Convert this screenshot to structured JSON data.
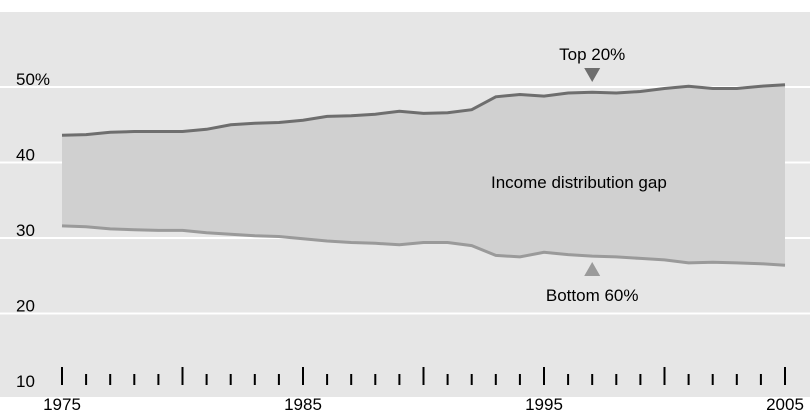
{
  "chart_data": {
    "type": "area",
    "title": "",
    "xlabel": "",
    "ylabel": "",
    "xlim": [
      1975,
      2005
    ],
    "ylim": [
      10,
      50
    ],
    "x_ticks": [
      "1975",
      "1985",
      "1995",
      "2005"
    ],
    "y_ticks": [
      "50%",
      "40",
      "30",
      "20",
      "10"
    ],
    "y_tick_values": [
      50,
      40,
      30,
      20,
      10
    ],
    "grid": true,
    "series": [
      {
        "name": "Top 20%",
        "x": [
          1975,
          1976,
          1977,
          1978,
          1979,
          1980,
          1981,
          1982,
          1983,
          1984,
          1985,
          1986,
          1987,
          1988,
          1989,
          1990,
          1991,
          1992,
          1993,
          1994,
          1995,
          1996,
          1997,
          1998,
          1999,
          2000,
          2001,
          2002,
          2003,
          2004,
          2005
        ],
        "values": [
          43.6,
          43.7,
          44.0,
          44.1,
          44.1,
          44.1,
          44.4,
          45.0,
          45.2,
          45.3,
          45.6,
          46.1,
          46.2,
          46.4,
          46.8,
          46.5,
          46.6,
          47.0,
          48.7,
          49.0,
          48.8,
          49.2,
          49.3,
          49.2,
          49.4,
          49.8,
          50.1,
          49.8,
          49.8,
          50.1,
          50.3
        ]
      },
      {
        "name": "Bottom 60%",
        "x": [
          1975,
          1976,
          1977,
          1978,
          1979,
          1980,
          1981,
          1982,
          1983,
          1984,
          1985,
          1986,
          1987,
          1988,
          1989,
          1990,
          1991,
          1992,
          1993,
          1994,
          1995,
          1996,
          1997,
          1998,
          1999,
          2000,
          2001,
          2002,
          2003,
          2004,
          2005
        ],
        "values": [
          31.6,
          31.5,
          31.2,
          31.1,
          31.0,
          31.0,
          30.7,
          30.5,
          30.3,
          30.2,
          29.9,
          29.6,
          29.4,
          29.3,
          29.1,
          29.4,
          29.4,
          29.0,
          27.7,
          27.5,
          28.1,
          27.8,
          27.6,
          27.5,
          27.3,
          27.1,
          26.7,
          26.8,
          26.7,
          26.6,
          26.4
        ]
      }
    ],
    "annotations": {
      "top_label": "Top 20%",
      "bottom_label": "Bottom 60%",
      "gap_label": "Income distribution gap"
    },
    "colors": {
      "background": "#e6e6e6",
      "gap_fill": "#d0d0d0",
      "top_line": "#6e6e6e",
      "bottom_line": "#9a9a9a",
      "grid": "#ffffff",
      "axis": "#000000"
    }
  }
}
